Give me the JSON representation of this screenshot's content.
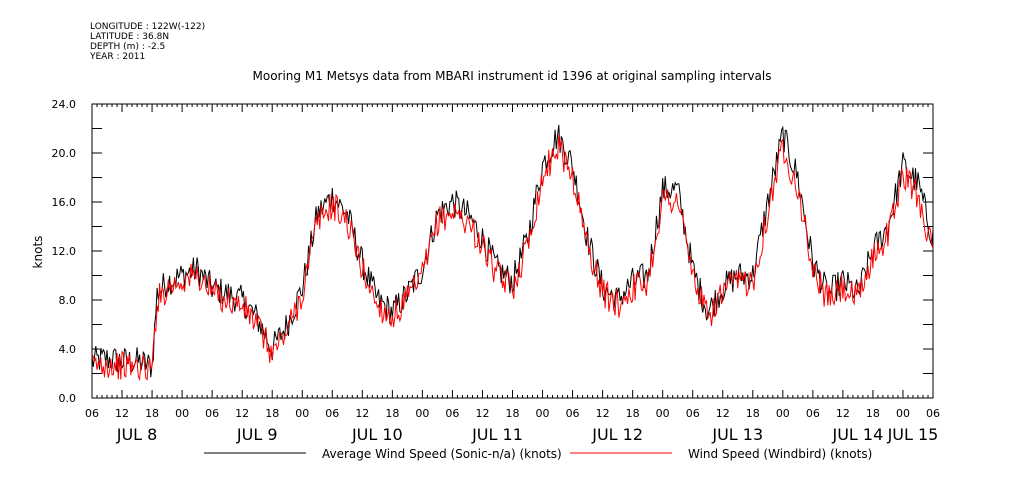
{
  "header": {
    "longitude": "LONGITUDE : 122W(-122)",
    "latitude": "LATITUDE : 36.8N",
    "depth": "DEPTH (m) : -2.5",
    "year": "YEAR : 2011"
  },
  "chart_data": {
    "type": "line",
    "title": "Mooring M1 Metsys data from MBARI instrument id 1396 at original sampling intervals",
    "ylabel": "knots",
    "xlabel": "",
    "ylim": [
      0,
      24
    ],
    "yticks": [
      "0.0",
      "4.0",
      "8.0",
      "12.0",
      "16.0",
      "20.0",
      "24.0"
    ],
    "xlim": [
      0,
      168
    ],
    "hour_ticks": [
      "06",
      "12",
      "18",
      "00",
      "06",
      "12",
      "18",
      "00",
      "06",
      "12",
      "18",
      "00",
      "06",
      "12",
      "18",
      "00",
      "06",
      "12",
      "18",
      "00",
      "06",
      "12",
      "18",
      "00",
      "06",
      "12",
      "18",
      "00",
      "06"
    ],
    "day_labels": [
      "JUL 8",
      "JUL 9",
      "JUL 10",
      "JUL 11",
      "JUL 12",
      "JUL 13",
      "JUL 14",
      "JUL 15"
    ],
    "grid": false,
    "legend_position": "bottom",
    "series": [
      {
        "name": "Average Wind Speed (Sonic-n/a) (knots)",
        "color": "#000000",
        "x": [
          0,
          3,
          6,
          9,
          12,
          13,
          15,
          18,
          21,
          24,
          27,
          30,
          33,
          36,
          39,
          42,
          45,
          48,
          51,
          54,
          57,
          60,
          63,
          66,
          69,
          72,
          75,
          78,
          81,
          84,
          87,
          90,
          93,
          96,
          99,
          102,
          105,
          108,
          111,
          114,
          117,
          120,
          123,
          126,
          129,
          132,
          135,
          138,
          141,
          144,
          147,
          150,
          153,
          156,
          159,
          162,
          165,
          168
        ],
        "values": [
          3.0,
          3.2,
          3.0,
          3.0,
          2.6,
          8.5,
          9.5,
          10.0,
          10.5,
          9.0,
          8.5,
          8.0,
          6.5,
          4.0,
          6.0,
          9.0,
          15.0,
          16.5,
          15.0,
          11.0,
          8.0,
          7.0,
          8.5,
          10.5,
          15.0,
          16.0,
          15.0,
          13.0,
          10.5,
          9.5,
          13.0,
          19.0,
          21.5,
          19.0,
          13.0,
          9.0,
          8.0,
          9.5,
          10.0,
          17.0,
          17.0,
          10.5,
          7.0,
          9.0,
          10.0,
          10.0,
          16.0,
          21.5,
          18.0,
          11.0,
          8.5,
          9.5,
          8.5,
          12.0,
          14.0,
          19.0,
          17.5,
          13.0
        ]
      },
      {
        "name": "Wind Speed (Windbird) (knots)",
        "color": "#ff0000",
        "x": [
          0,
          3,
          6,
          9,
          12,
          13,
          15,
          18,
          21,
          24,
          27,
          30,
          33,
          36,
          39,
          42,
          45,
          48,
          51,
          54,
          57,
          60,
          63,
          66,
          69,
          72,
          75,
          78,
          81,
          84,
          87,
          90,
          93,
          96,
          99,
          102,
          105,
          108,
          111,
          114,
          117,
          120,
          123,
          126,
          129,
          132,
          135,
          138,
          141,
          144,
          147,
          150,
          153,
          156,
          159,
          162,
          165,
          168
        ],
        "values": [
          2.6,
          2.8,
          2.6,
          2.6,
          2.3,
          8.0,
          9.0,
          9.6,
          10.0,
          8.6,
          8.0,
          7.5,
          6.0,
          3.6,
          5.5,
          8.5,
          14.4,
          15.8,
          14.4,
          10.5,
          7.6,
          6.6,
          8.0,
          10.0,
          14.4,
          15.2,
          14.4,
          12.4,
          10.0,
          9.0,
          12.5,
          18.0,
          20.6,
          18.2,
          12.4,
          8.6,
          7.6,
          9.0,
          9.5,
          16.2,
          16.2,
          10.0,
          6.5,
          8.6,
          9.5,
          9.5,
          15.2,
          20.6,
          17.2,
          10.4,
          8.0,
          9.0,
          8.0,
          11.5,
          13.4,
          18.2,
          16.6,
          12.0
        ]
      }
    ]
  }
}
